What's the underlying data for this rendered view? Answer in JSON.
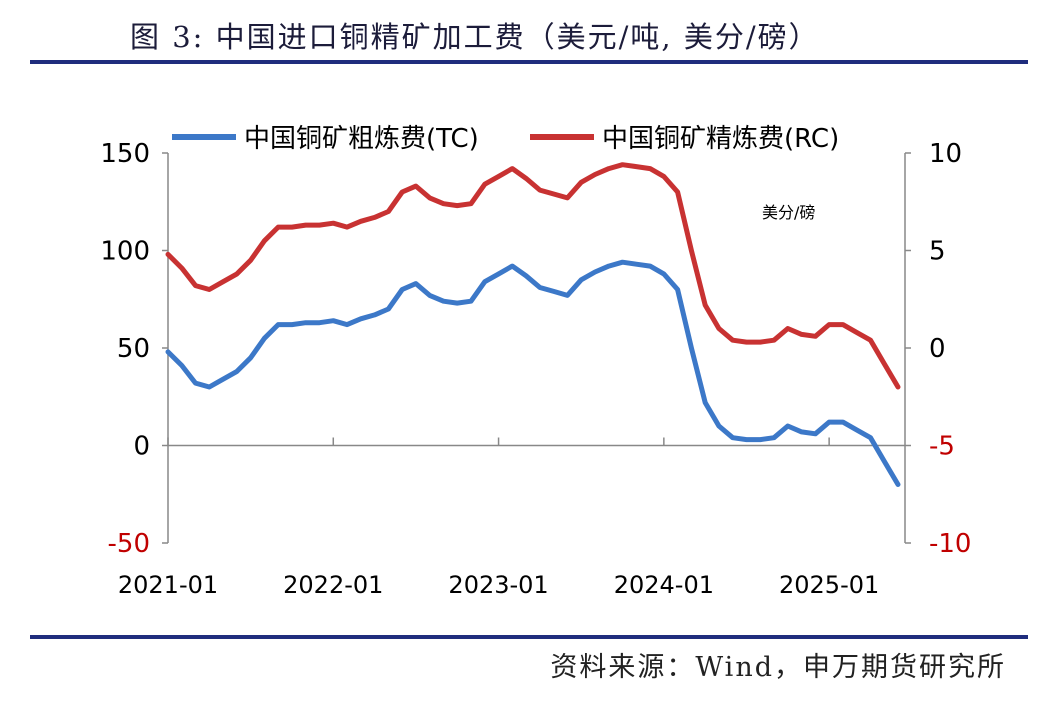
{
  "figure": {
    "title": "图 3: 中国进口铜精矿加工费（美元/吨, 美分/磅）",
    "source": "资料来源：Wind，申万期货研究所",
    "rule_color": "#1f2d7d"
  },
  "chart_data": {
    "type": "line",
    "x_ticks": [
      "2021-01",
      "2022-01",
      "2023-01",
      "2024-01",
      "2025-01"
    ],
    "x_tick_index": [
      0,
      12,
      24,
      36,
      48
    ],
    "x": [
      "2021-01",
      "2021-02",
      "2021-03",
      "2021-04",
      "2021-05",
      "2021-06",
      "2021-07",
      "2021-08",
      "2021-09",
      "2021-10",
      "2021-11",
      "2021-12",
      "2022-01",
      "2022-02",
      "2022-03",
      "2022-04",
      "2022-05",
      "2022-06",
      "2022-07",
      "2022-08",
      "2022-09",
      "2022-10",
      "2022-11",
      "2022-12",
      "2023-01",
      "2023-02",
      "2023-03",
      "2023-04",
      "2023-05",
      "2023-06",
      "2023-07",
      "2023-08",
      "2023-09",
      "2023-10",
      "2023-11",
      "2023-12",
      "2024-01",
      "2024-02",
      "2024-03",
      "2024-04",
      "2024-05",
      "2024-06",
      "2024-07",
      "2024-08",
      "2024-09",
      "2024-10",
      "2024-11",
      "2024-12",
      "2025-01",
      "2025-02",
      "2025-03",
      "2025-04",
      "2025-05",
      "2025-06"
    ],
    "y_left": {
      "ticks": [
        150,
        100,
        50,
        0,
        -50
      ],
      "range": [
        -50,
        150
      ],
      "negative_color": "#c00000"
    },
    "y_right": {
      "ticks": [
        10,
        5,
        0,
        -5,
        -10
      ],
      "range": [
        -10,
        10
      ],
      "unit": "美分/磅",
      "negative_color": "#c00000"
    },
    "series": [
      {
        "name": "中国铜矿粗炼费(TC)",
        "axis": "left",
        "color": "#3c78c8",
        "values": [
          48,
          41,
          32,
          30,
          34,
          38,
          45,
          55,
          62,
          62,
          63,
          63,
          64,
          62,
          65,
          67,
          70,
          80,
          83,
          77,
          74,
          73,
          74,
          84,
          88,
          92,
          87,
          81,
          79,
          77,
          85,
          89,
          92,
          94,
          93,
          92,
          88,
          80,
          50,
          22,
          10,
          4,
          3,
          3,
          4,
          10,
          7,
          6,
          12,
          12,
          8,
          4,
          -8,
          -20
        ]
      },
      {
        "name": "中国铜矿精炼费(RC)",
        "axis": "right",
        "color": "#c83232",
        "values": [
          4.8,
          4.1,
          3.2,
          3.0,
          3.4,
          3.8,
          4.5,
          5.5,
          6.2,
          6.2,
          6.3,
          6.3,
          6.4,
          6.2,
          6.5,
          6.7,
          7.0,
          8.0,
          8.3,
          7.7,
          7.4,
          7.3,
          7.4,
          8.4,
          8.8,
          9.2,
          8.7,
          8.1,
          7.9,
          7.7,
          8.5,
          8.9,
          9.2,
          9.4,
          9.3,
          9.2,
          8.8,
          8.0,
          5.0,
          2.2,
          1.0,
          0.4,
          0.3,
          0.3,
          0.4,
          1.0,
          0.7,
          0.6,
          1.2,
          1.2,
          0.8,
          0.4,
          -0.8,
          -2.0
        ]
      }
    ]
  }
}
